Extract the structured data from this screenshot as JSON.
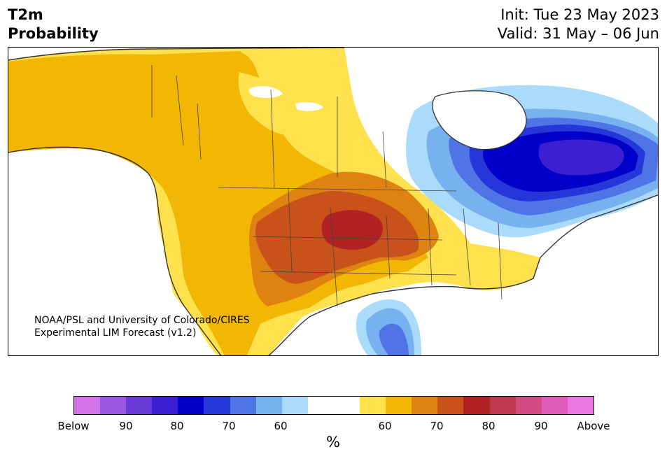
{
  "title": {
    "left_line1": "T2m",
    "left_line2": "Probability",
    "right_line1": "Init: Tue 23 May 2023",
    "right_line2": "Valid: 31 May – 06 Jun"
  },
  "credit": {
    "line1": "NOAA/PSL and University of Colorado/CIRES",
    "line2": "Experimental LIM Forecast (v1.2)"
  },
  "colorbar": {
    "colors": [
      "#d473e8",
      "#9b56e2",
      "#6a3ad8",
      "#3c1fd3",
      "#0000c8",
      "#2637d9",
      "#4f74e6",
      "#78b1f0",
      "#abdbfa",
      "#ffffff",
      "#ffffff",
      "#ffe14d",
      "#f2b705",
      "#df8310",
      "#c85219",
      "#b22222",
      "#c0384d",
      "#d14c80",
      "#df5ebb",
      "#e878de"
    ],
    "tick_labels": [
      "Below",
      "90",
      "80",
      "70",
      "60",
      "60",
      "70",
      "80",
      "90",
      "Above"
    ],
    "unit": "%"
  },
  "map": {
    "region": "North America",
    "colors": {
      "above_60": "#ffe14d",
      "above_70": "#f2b705",
      "above_75": "#df8310",
      "above_80": "#c85219",
      "above_85": "#b22222",
      "below_60": "#abdbfa",
      "below_70": "#78b1f0",
      "below_80": "#4f74e6",
      "below_85": "#2637d9",
      "below_90": "#0000c8",
      "below_95": "#3c1fd3",
      "coastline": "#333333"
    }
  }
}
